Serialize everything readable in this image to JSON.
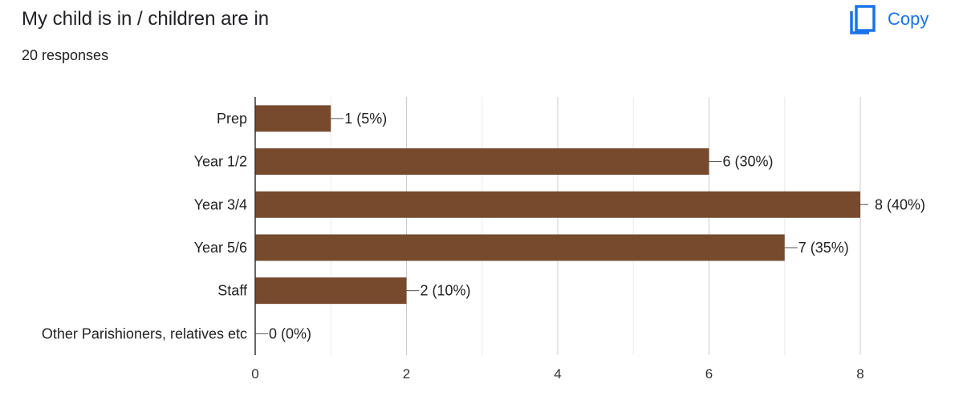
{
  "header": {
    "title": "My child is in / children are in",
    "responses": "20 responses",
    "copy_label": "Copy",
    "copy_icon": "copy-icon",
    "copy_color": "#1a73e8"
  },
  "chart_data": {
    "type": "bar",
    "orientation": "horizontal",
    "categories": [
      "Prep",
      "Year 1/2",
      "Year 3/4",
      "Year 5/6",
      "Staff",
      "Other Parishioners, relatives etc"
    ],
    "values": [
      1,
      6,
      8,
      7,
      2,
      0
    ],
    "data_labels": [
      "1 (5%)",
      "6 (30%)",
      "8 (40%)",
      "7 (35%)",
      "2 (10%)",
      "0 (0%)"
    ],
    "x_ticks": [
      0,
      2,
      4,
      6,
      8
    ],
    "xlim": [
      0,
      8
    ],
    "grid": true,
    "bar_color": "#774a2e"
  }
}
